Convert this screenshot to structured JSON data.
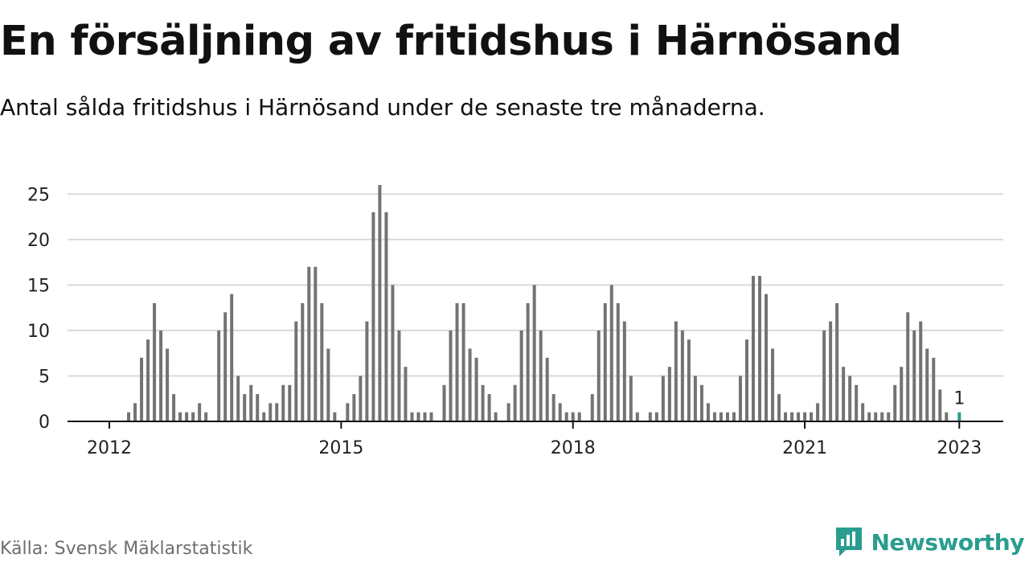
{
  "header": {
    "title": "En försäljning av fritidshus i Härnösand",
    "subtitle": "Antal sålda fritidshus i Härnösand under de senaste tre månaderna."
  },
  "footer": {
    "source": "Källa: Svensk Mäklarstatistik",
    "brand": "Newsworthy",
    "brand_icon": "newsworthy-logo-icon"
  },
  "colors": {
    "bar": "#737373",
    "highlight": "#2a9d8f",
    "grid": "#d9d9d9",
    "baseline": "#111111"
  },
  "chart_data": {
    "type": "bar",
    "x_start": "2012-01",
    "x_end": "2023-01",
    "x_unit": "month",
    "ylim": [
      0,
      26
    ],
    "yticks": [
      0,
      5,
      10,
      15,
      20,
      25
    ],
    "xticks": [
      {
        "date": "2012-01",
        "label": "2012"
      },
      {
        "date": "2015-01",
        "label": "2015"
      },
      {
        "date": "2018-01",
        "label": "2018"
      },
      {
        "date": "2021-01",
        "label": "2021"
      },
      {
        "date": "2023-01",
        "label": "2023"
      }
    ],
    "grid": true,
    "values": [
      0,
      0,
      0,
      1,
      2,
      7,
      9,
      13,
      10,
      8,
      3,
      1,
      1,
      1,
      2,
      1,
      0,
      10,
      12,
      14,
      5,
      3,
      4,
      3,
      1,
      2,
      2,
      4,
      4,
      11,
      13,
      17,
      17,
      13,
      8,
      1,
      0,
      2,
      3,
      5,
      11,
      23,
      26,
      23,
      15,
      10,
      6,
      1,
      1,
      1,
      1,
      0,
      4,
      10,
      13,
      13,
      8,
      7,
      4,
      3,
      1,
      0,
      2,
      4,
      10,
      13,
      15,
      10,
      7,
      3,
      2,
      1,
      1,
      1,
      0,
      3,
      10,
      13,
      15,
      13,
      11,
      5,
      1,
      0,
      1,
      1,
      5,
      6,
      11,
      10,
      9,
      5,
      4,
      2,
      1,
      1,
      1,
      1,
      5,
      9,
      16,
      16,
      14,
      8,
      3,
      1,
      1,
      1,
      1,
      1,
      2,
      10,
      11,
      13,
      6,
      5,
      4,
      2,
      1,
      1,
      1,
      1,
      4,
      6,
      12,
      10,
      11,
      8,
      7,
      3.5,
      1
    ],
    "highlight": {
      "date": "2023-01",
      "value": 1,
      "label": "1"
    }
  }
}
